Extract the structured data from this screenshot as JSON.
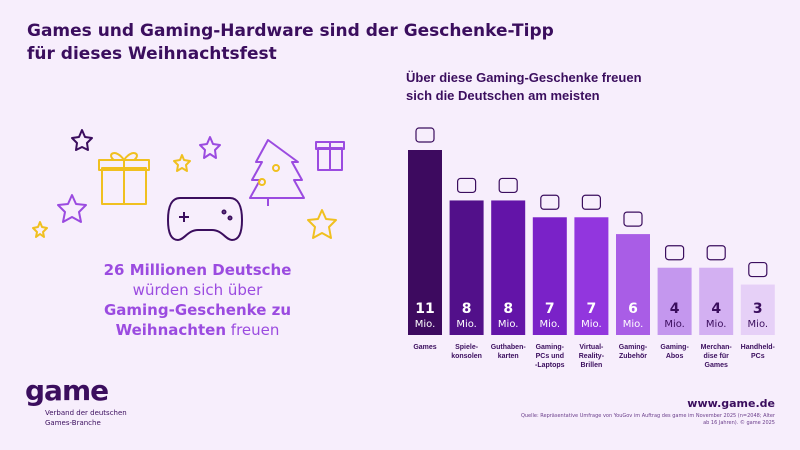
{
  "title_line1": "Games und Gaming-Hardware sind der Geschenke-Tipp",
  "title_line2": "für dieses Weihnachtsfest",
  "claim": {
    "bold1": "26 Millionen Deutsche",
    "normal1": "würden sich über",
    "bold2": "Gaming-Geschenke zu",
    "bold3": "Weihnachten",
    "normal2": " freuen"
  },
  "logo": {
    "text": "game",
    "sub1": "Verband der deutschen",
    "sub2": "Games-Branche"
  },
  "url": "www.game.de",
  "source": "Quelle: Repräsentative Umfrage von YouGov im Auftrag des game im November 2025 (n=2048; Alter ab 16 Jahren). © game 2025",
  "chart_data": {
    "type": "bar",
    "title": "Über diese Gaming-Geschenke freuen sich die Deutschen am meisten",
    "unit": "Mio.",
    "categories": [
      [
        "Games"
      ],
      [
        "Spiele-",
        "konsolen"
      ],
      [
        "Guthaben-",
        "karten"
      ],
      [
        "Gaming-",
        "PCs und",
        "-Laptops"
      ],
      [
        "Virtual-",
        "Reality-",
        "Brillen"
      ],
      [
        "Gaming-",
        "Zubehör"
      ],
      [
        "Gaming-",
        "Abos"
      ],
      [
        "Merchan-",
        "dise für",
        "Games"
      ],
      [
        "Handheld-",
        "PCs"
      ]
    ],
    "values": [
      11,
      8,
      8,
      7,
      7,
      6,
      4,
      4,
      3
    ],
    "colors": [
      "#3d0a5f",
      "#52108a",
      "#6314a8",
      "#7a22c8",
      "#9236de",
      "#a95de6",
      "#c497ee",
      "#d3b0f2",
      "#e6d0f7"
    ],
    "ylim": [
      0,
      11
    ],
    "grid": false
  }
}
